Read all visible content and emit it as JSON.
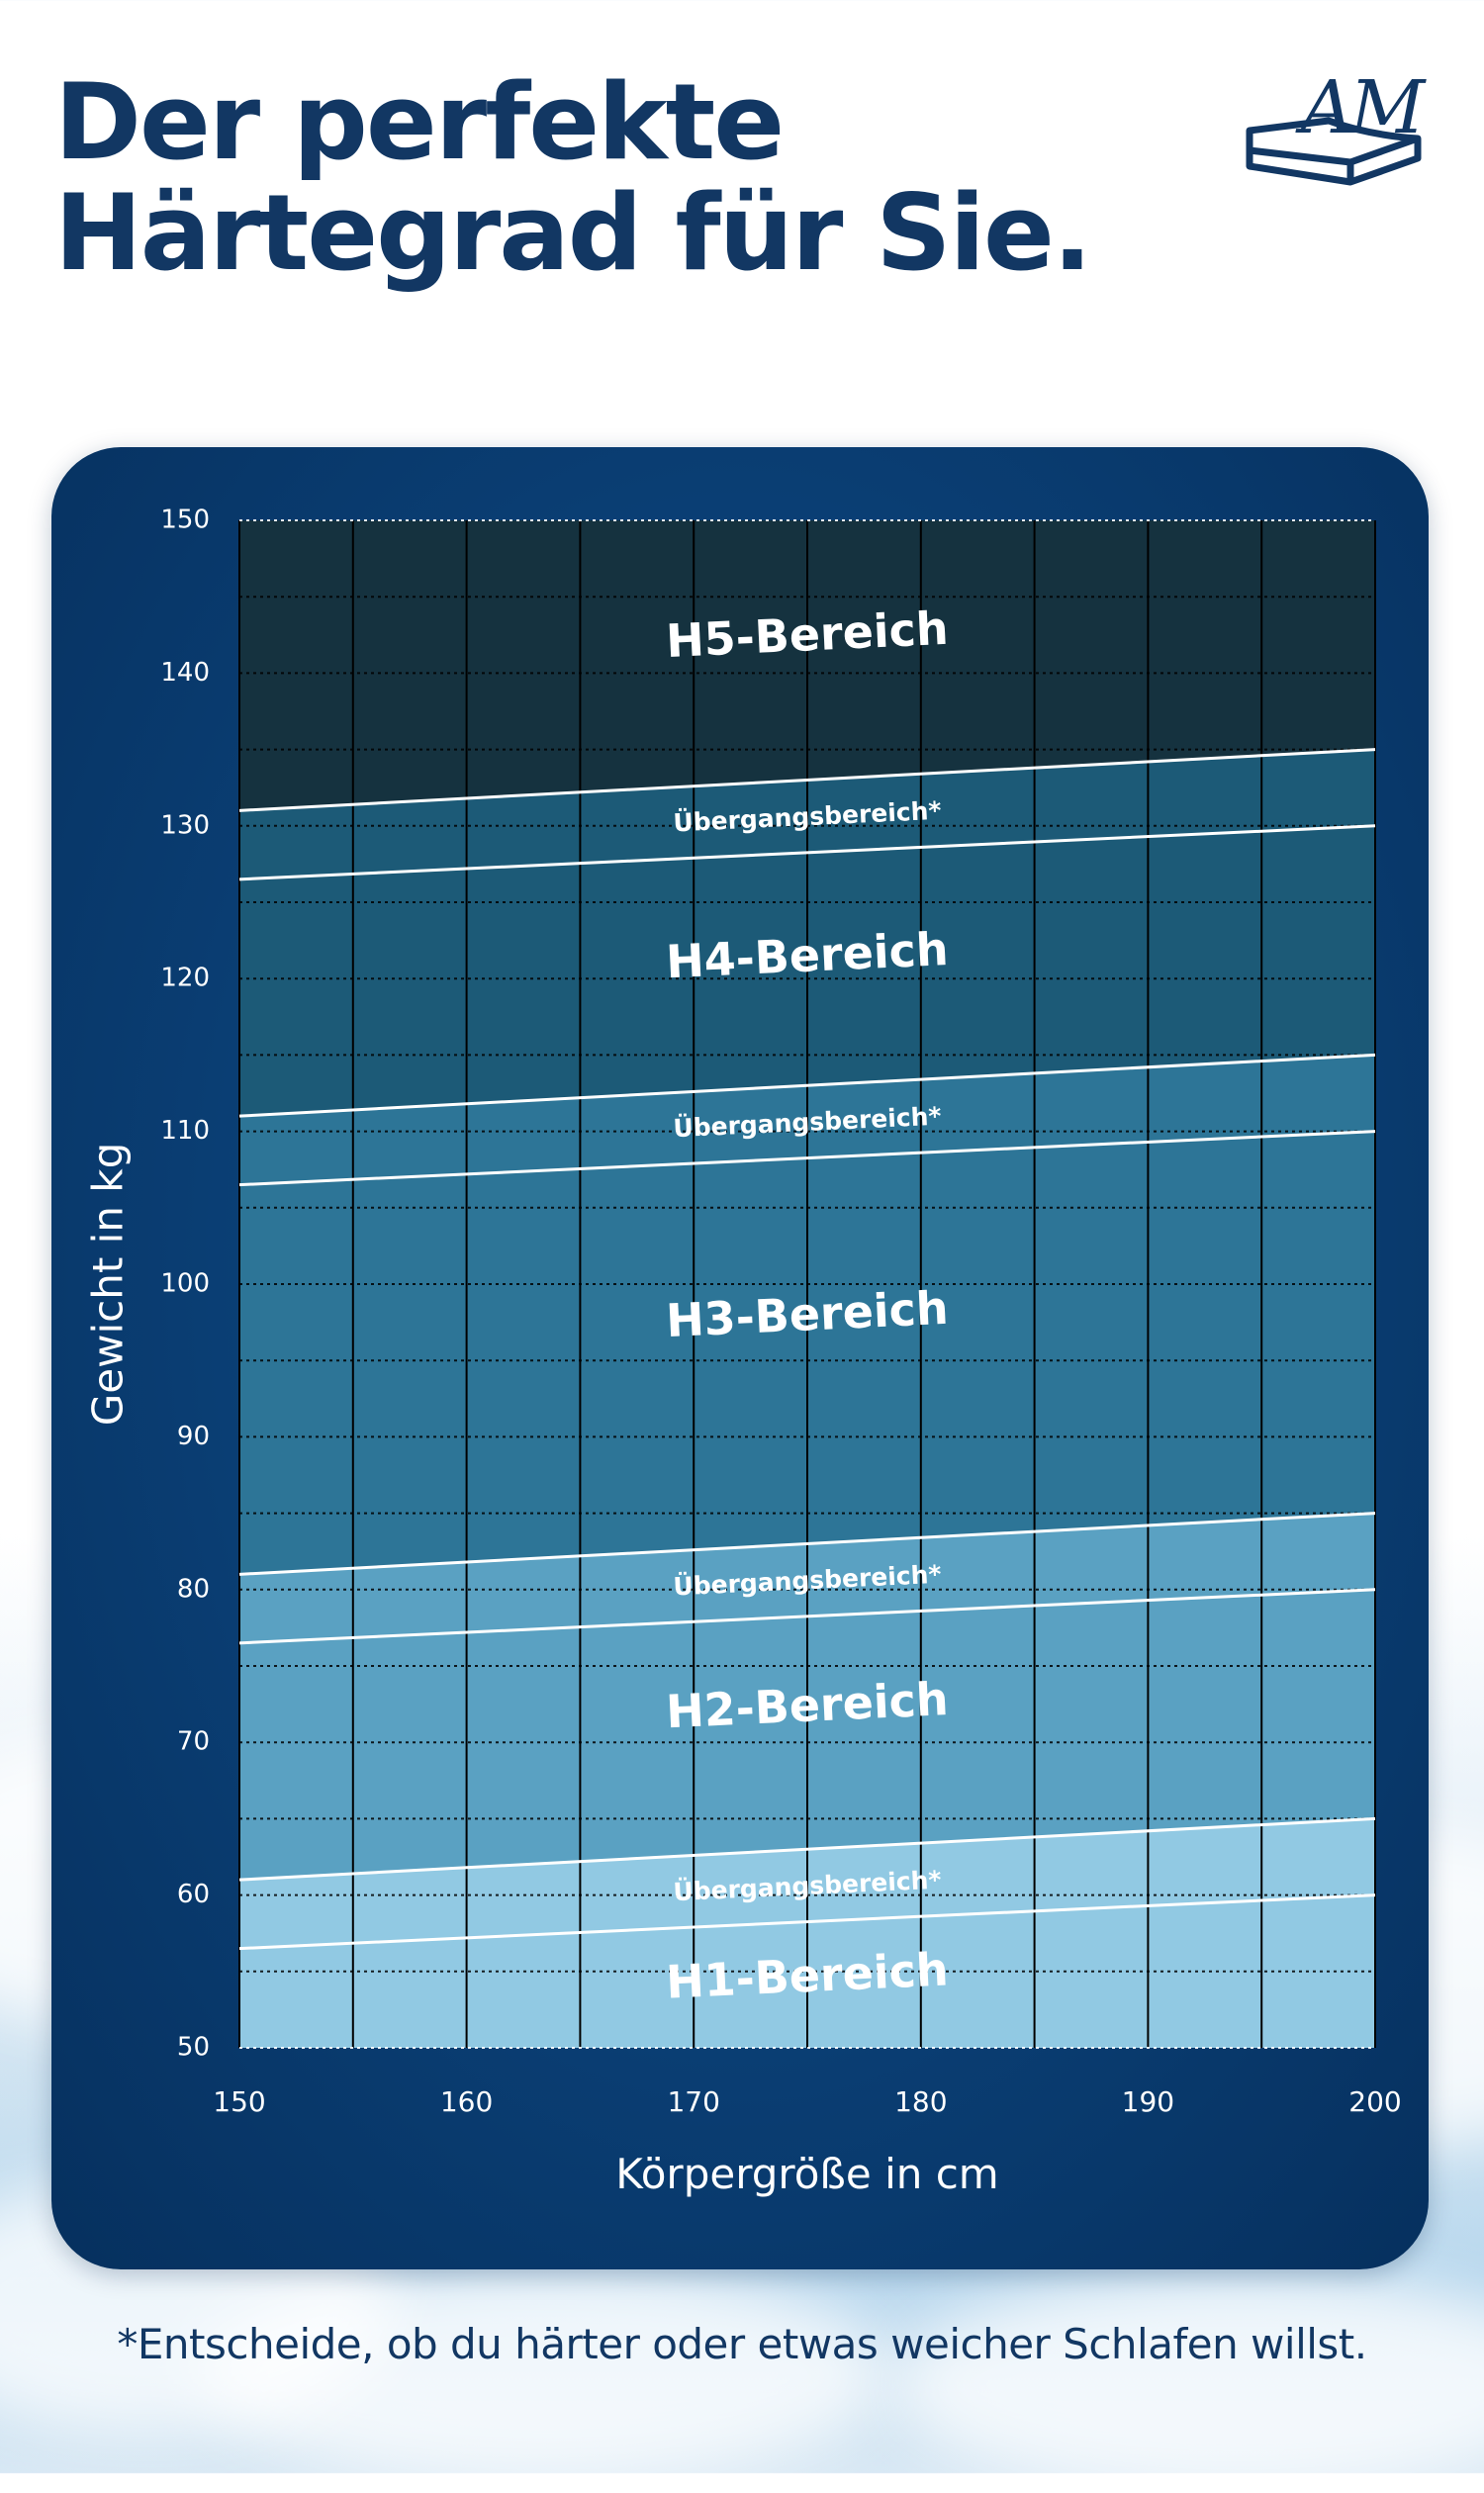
{
  "header": {
    "title": "Der perfekte\nHärtegrad für Sie.",
    "logo_text": "AM"
  },
  "footnote": "*Entscheide, ob du härter oder etwas weicher Schlafen willst.",
  "colors": {
    "title": "#123763",
    "card": "#0b4178",
    "H5": "#15323f",
    "H4": "#1c5a77",
    "H3": "#2d7597",
    "H2": "#5aa1c2",
    "H1": "#91c9e3",
    "boundary": "#ffffff"
  },
  "chart_data": {
    "type": "area",
    "xlabel": "Körpergröße in cm",
    "ylabel": "Gewicht in kg",
    "xlim": [
      150,
      200
    ],
    "ylim": [
      50,
      150
    ],
    "xticks": [
      150,
      160,
      170,
      180,
      190,
      200
    ],
    "yticks": [
      50,
      60,
      70,
      80,
      90,
      100,
      110,
      120,
      130,
      140,
      150
    ],
    "grid": true,
    "boundaries": [
      {
        "x": [
          150,
          200
        ],
        "y": [
          56.5,
          60
        ]
      },
      {
        "x": [
          150,
          200
        ],
        "y": [
          61,
          65
        ]
      },
      {
        "x": [
          150,
          200
        ],
        "y": [
          76.5,
          80
        ]
      },
      {
        "x": [
          150,
          200
        ],
        "y": [
          81,
          85
        ]
      },
      {
        "x": [
          150,
          200
        ],
        "y": [
          106.5,
          110
        ]
      },
      {
        "x": [
          150,
          200
        ],
        "y": [
          111,
          115
        ]
      },
      {
        "x": [
          150,
          200
        ],
        "y": [
          126.5,
          130
        ]
      },
      {
        "x": [
          150,
          200
        ],
        "y": [
          131,
          135
        ]
      }
    ],
    "regions": [
      {
        "name": "H1-Bereich",
        "color_key": "H1",
        "lower": null,
        "upper": 0,
        "label_pos": [
          175,
          54.5
        ],
        "label_class": "main"
      },
      {
        "name": "Übergangsbereich*",
        "color_key": "H1",
        "lower": 0,
        "upper": 1,
        "label_pos": [
          175,
          60.5
        ],
        "label_class": "trans"
      },
      {
        "name": "H2-Bereich",
        "color_key": "H2",
        "lower": 1,
        "upper": 2,
        "label_pos": [
          175,
          72.2
        ],
        "label_class": "main"
      },
      {
        "name": "Übergangsbereich*",
        "color_key": "H2",
        "lower": 2,
        "upper": 3,
        "label_pos": [
          175,
          80.5
        ],
        "label_class": "trans"
      },
      {
        "name": "H3-Bereich",
        "color_key": "H3",
        "lower": 3,
        "upper": 4,
        "label_pos": [
          175,
          97.8
        ],
        "label_class": "main"
      },
      {
        "name": "Übergangsbereich*",
        "color_key": "H3",
        "lower": 4,
        "upper": 5,
        "label_pos": [
          175,
          110.5
        ],
        "label_class": "trans"
      },
      {
        "name": "H4-Bereich",
        "color_key": "H4",
        "lower": 5,
        "upper": 6,
        "label_pos": [
          175,
          121.3
        ],
        "label_class": "main"
      },
      {
        "name": "Übergangsbereich*",
        "color_key": "H4",
        "lower": 6,
        "upper": 7,
        "label_pos": [
          175,
          130.5
        ],
        "label_class": "trans"
      },
      {
        "name": "H5-Bereich",
        "color_key": "H5",
        "lower": 7,
        "upper": null,
        "label_pos": [
          175,
          142.3
        ],
        "label_class": "main"
      }
    ]
  }
}
